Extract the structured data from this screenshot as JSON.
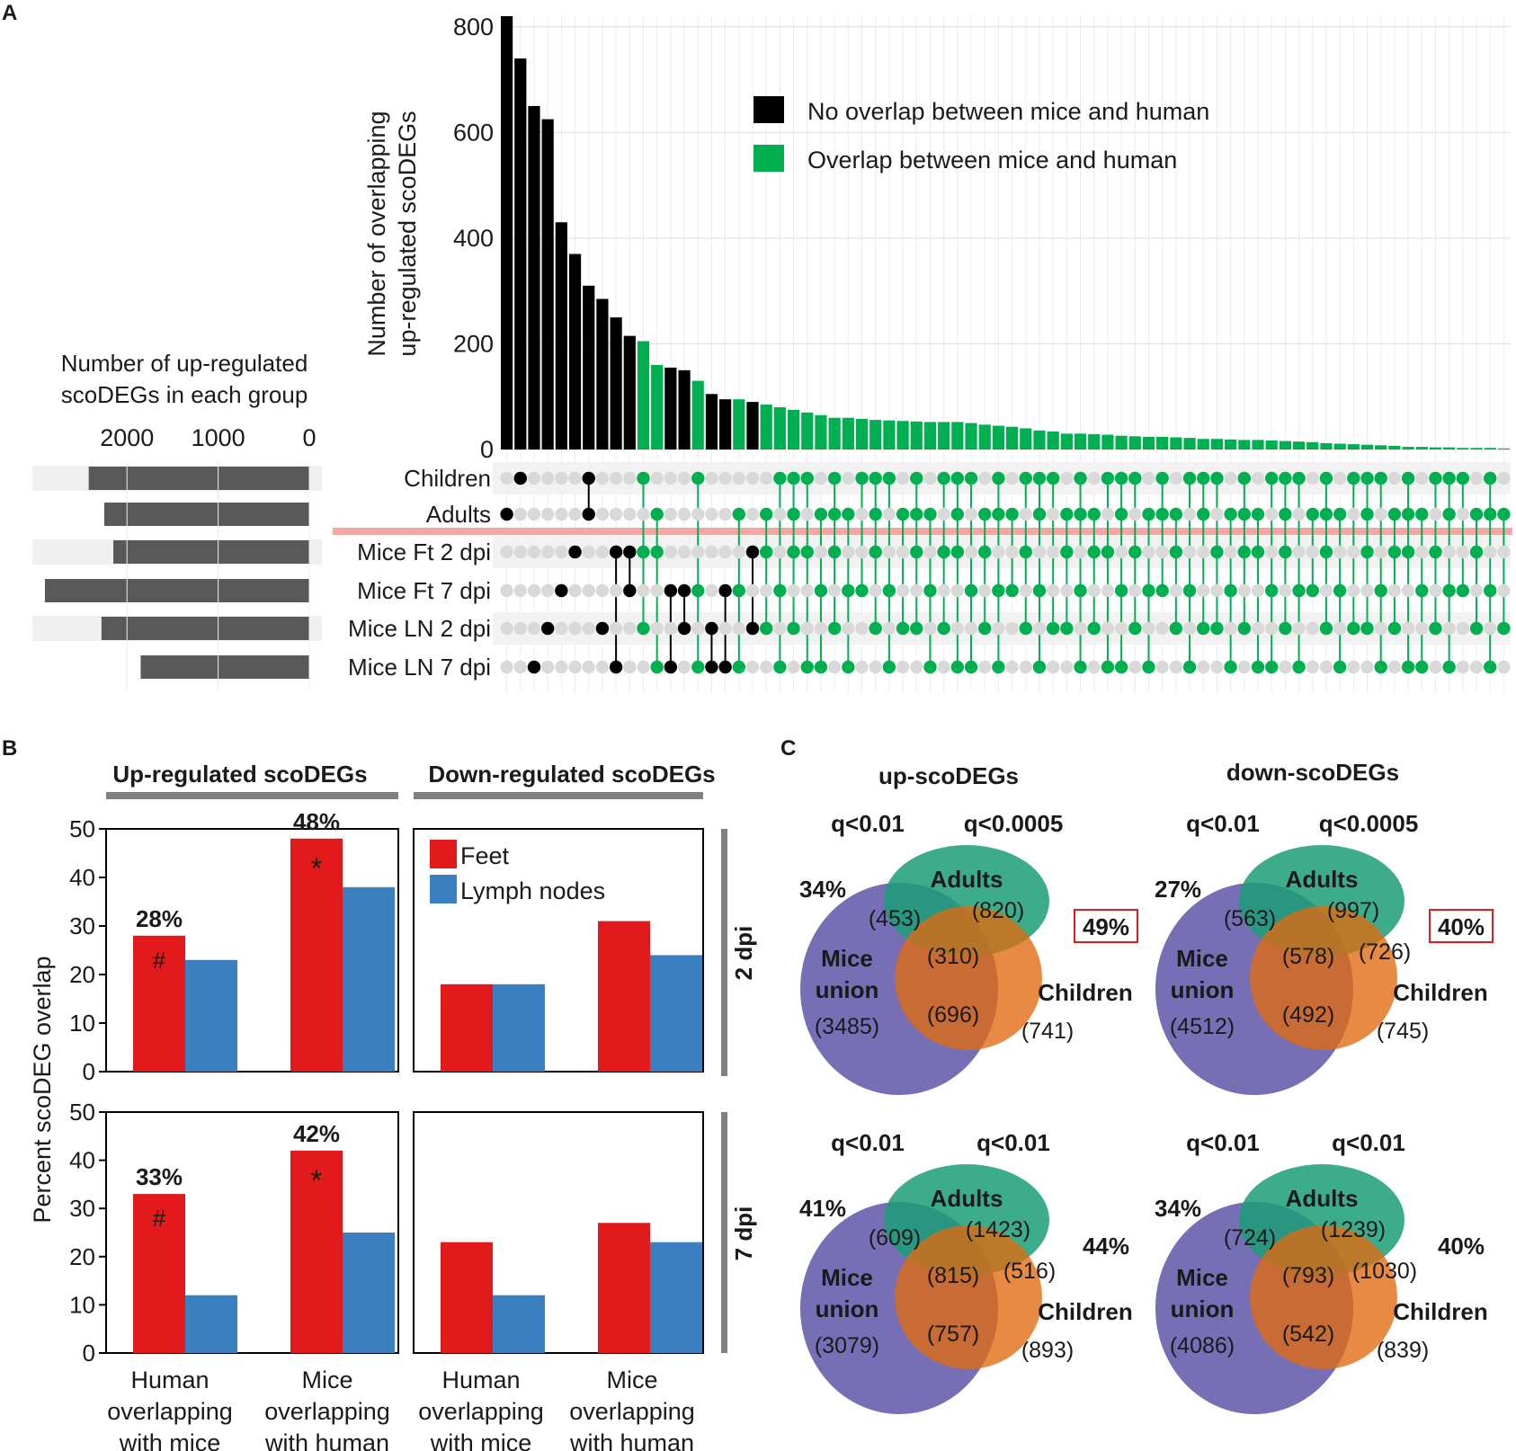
{
  "panel_labels": {
    "a": "A",
    "b": "B",
    "c": "C"
  },
  "colors": {
    "black": "#000000",
    "green": "#00b050",
    "red": "#e31a1c",
    "blue": "#3a7fc0",
    "grey_bar": "#595959",
    "dot_off": "#d9d9d9",
    "purple": "#6b63b0",
    "teal": "#1a9e77",
    "orange": "#e06a10",
    "highlight_line": "#f4a6a6"
  },
  "chart_data": [
    {
      "type": "bar",
      "name": "upset-intersection-bars",
      "ylabel_lines": [
        "Number of overlapping",
        "up-regulated scoDEGs"
      ],
      "ylim": [
        0,
        820
      ],
      "yticks": [
        0,
        200,
        400,
        600,
        800
      ],
      "legend": [
        "No overlap between mice and human",
        "Overlap between mice and human"
      ],
      "values": [
        820,
        740,
        650,
        625,
        430,
        370,
        310,
        285,
        250,
        215,
        205,
        160,
        155,
        150,
        130,
        105,
        95,
        95,
        90,
        85,
        80,
        75,
        70,
        65,
        60,
        60,
        58,
        56,
        55,
        54,
        53,
        52,
        52,
        52,
        50,
        47,
        45,
        43,
        40,
        36,
        34,
        30,
        30,
        29,
        28,
        26,
        25,
        24,
        24,
        23,
        22,
        20,
        20,
        19,
        18,
        18,
        17,
        16,
        15,
        14,
        12,
        11,
        10,
        9,
        8,
        7,
        5,
        5,
        4,
        4,
        3,
        3,
        3,
        2
      ],
      "overlap": [
        0,
        0,
        0,
        0,
        0,
        0,
        0,
        0,
        0,
        0,
        1,
        1,
        0,
        0,
        1,
        0,
        0,
        1,
        0,
        1,
        1,
        1,
        1,
        1,
        1,
        1,
        1,
        1,
        1,
        1,
        1,
        1,
        1,
        1,
        1,
        1,
        1,
        1,
        1,
        1,
        1,
        1,
        1,
        1,
        1,
        1,
        1,
        1,
        1,
        1,
        1,
        1,
        1,
        1,
        1,
        1,
        1,
        1,
        1,
        1,
        1,
        1,
        1,
        1,
        1,
        1,
        1,
        1,
        1,
        1,
        1,
        1,
        1,
        1
      ]
    },
    {
      "type": "bar",
      "name": "set-size-bars",
      "title_lines": [
        "Number of up-regulated",
        "scoDEGs in each group"
      ],
      "xlim": [
        0,
        2900
      ],
      "xticks": [
        2000,
        1000,
        0
      ],
      "sets": [
        "Children",
        "Adults",
        "Mice Ft 2 dpi",
        "Mice Ft 7 dpi",
        "Mice LN 2 dpi",
        "Mice LN 7 dpi"
      ],
      "values": [
        2420,
        2250,
        2150,
        2900,
        2280,
        1850
      ]
    },
    {
      "type": "bar",
      "name": "percent-overlap",
      "ylabel": "Percent scoDEG overlap",
      "ylim": [
        0,
        50
      ],
      "yticks": [
        0,
        10,
        20,
        30,
        40,
        50
      ],
      "column_headers": [
        "Up-regulated scoDEGs",
        "Down-regulated scoDEGs"
      ],
      "row_labels": [
        "2 dpi",
        "7 dpi"
      ],
      "legend": [
        "Feet",
        "Lymph nodes"
      ],
      "categories": [
        "Human overlapping with mice",
        "Mice overlapping with human"
      ],
      "category_lines": [
        [
          "Human",
          "overlapping",
          "with mice"
        ],
        [
          "Mice",
          "overlapping",
          "with human"
        ]
      ],
      "panels": [
        {
          "row": "2 dpi",
          "col": "Up-regulated scoDEGs",
          "feet": [
            28,
            48
          ],
          "lymph": [
            23,
            38
          ],
          "labels": [
            "28%",
            "48%"
          ],
          "marks": [
            "#",
            "*"
          ]
        },
        {
          "row": "2 dpi",
          "col": "Down-regulated scoDEGs",
          "feet": [
            18,
            31
          ],
          "lymph": [
            18,
            24
          ],
          "labels": [
            "",
            ""
          ],
          "marks": [
            "",
            ""
          ]
        },
        {
          "row": "7 dpi",
          "col": "Up-regulated scoDEGs",
          "feet": [
            33,
            42
          ],
          "lymph": [
            12,
            25
          ],
          "labels": [
            "33%",
            "42%"
          ],
          "marks": [
            "#",
            "*"
          ]
        },
        {
          "row": "7 dpi",
          "col": "Down-regulated scoDEGs",
          "feet": [
            23,
            27
          ],
          "lymph": [
            12,
            23
          ],
          "labels": [
            "",
            ""
          ],
          "marks": [
            "",
            ""
          ]
        }
      ]
    },
    {
      "type": "venn",
      "name": "venn-diagrams",
      "column_titles": [
        "up-scoDEGs",
        "down-scoDEGs"
      ],
      "set_names": {
        "mice_line1": "Mice",
        "mice_line2": "union",
        "adults": "Adults",
        "children": "Children"
      },
      "diagrams": [
        {
          "q1": "q<0.01",
          "q2": "q<0.0005",
          "pct_left": "34%",
          "pct_right": "49%",
          "boxed": true,
          "mice": "(3485)",
          "adults": "(820)",
          "children": "(741)",
          "mice_adults": "(453)",
          "center": "(310)",
          "mice_children": "(696)",
          "adults_children": ""
        },
        {
          "q1": "q<0.01",
          "q2": "q<0.0005",
          "pct_left": "27%",
          "pct_right": "40%",
          "boxed": true,
          "mice": "(4512)",
          "adults": "(997)",
          "children": "(745)",
          "mice_adults": "(563)",
          "center": "(578)",
          "mice_children": "(492)",
          "adults_children": "(726)"
        },
        {
          "q1": "q<0.01",
          "q2": "q<0.01",
          "pct_left": "41%",
          "pct_right": "44%",
          "boxed": false,
          "mice": "(3079)",
          "adults": "(1423)",
          "children": "(893)",
          "mice_adults": "(609)",
          "center": "(815)",
          "mice_children": "(757)",
          "adults_children": "(516)"
        },
        {
          "q1": "q<0.01",
          "q2": "q<0.01",
          "pct_left": "34%",
          "pct_right": "40%",
          "boxed": false,
          "mice": "(4086)",
          "adults": "(1239)",
          "children": "(839)",
          "mice_adults": "(724)",
          "center": "(793)",
          "mice_children": "(542)",
          "adults_children": "(1030)"
        }
      ]
    }
  ]
}
